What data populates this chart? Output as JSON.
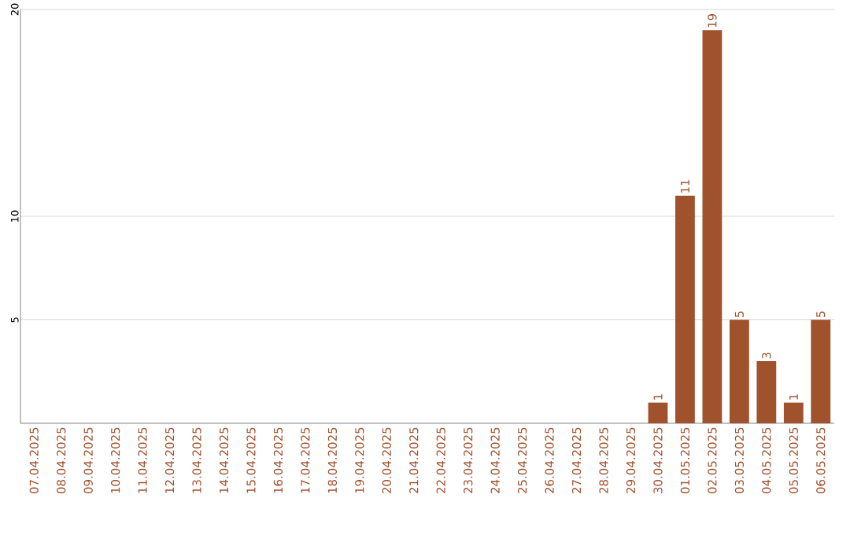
{
  "chart_data": {
    "type": "bar",
    "categories": [
      "07.04.2025",
      "08.04.2025",
      "09.04.2025",
      "10.04.2025",
      "11.04.2025",
      "12.04.2025",
      "13.04.2025",
      "14.04.2025",
      "15.04.2025",
      "16.04.2025",
      "17.04.2025",
      "18.04.2025",
      "19.04.2025",
      "20.04.2025",
      "21.04.2025",
      "22.04.2025",
      "23.04.2025",
      "24.04.2025",
      "25.04.2025",
      "26.04.2025",
      "27.04.2025",
      "28.04.2025",
      "29.04.2025",
      "30.04.2025",
      "01.05.2025",
      "02.05.2025",
      "03.05.2025",
      "04.05.2025",
      "05.05.2025",
      "06.05.2025"
    ],
    "values": [
      0,
      0,
      0,
      0,
      0,
      0,
      0,
      0,
      0,
      0,
      0,
      0,
      0,
      0,
      0,
      0,
      0,
      0,
      0,
      0,
      0,
      0,
      0,
      1,
      11,
      19,
      5,
      3,
      1,
      5
    ],
    "value_labels": [
      null,
      null,
      null,
      null,
      null,
      null,
      null,
      null,
      null,
      null,
      null,
      null,
      null,
      null,
      null,
      null,
      null,
      null,
      null,
      null,
      null,
      null,
      null,
      "1",
      "11",
      "19",
      "5",
      "3",
      "1",
      "5"
    ],
    "color": "#a0522d",
    "ylim": [
      0,
      20
    ],
    "yticks": [
      5,
      10,
      20
    ],
    "grid": "y"
  }
}
